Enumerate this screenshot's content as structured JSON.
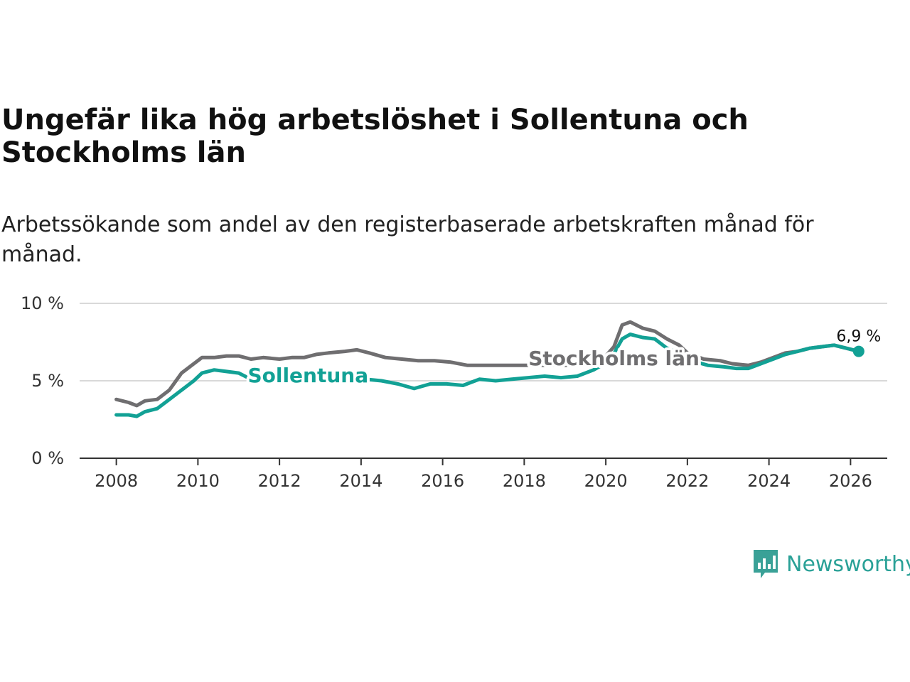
{
  "colors": {
    "sollentuna": "#12a195",
    "stockholm": "#6f6e70",
    "grid": "#d9d9d9",
    "axis": "#333333",
    "brand": "#3aa197"
  },
  "brand": {
    "name": "Newsworthy",
    "icon": "newsworthy-logo-icon"
  },
  "chart_data": {
    "type": "line",
    "title": "Ungefär lika hög arbetslöshet i Sollentuna och Stockholms län",
    "subtitle": "Arbetssökande som andel av den registerbaserade arbetskraften månad för månad.",
    "xlabel": "",
    "ylabel": "",
    "xlim": [
      2007.1,
      2026.9
    ],
    "ylim": [
      0,
      10
    ],
    "x_ticks": [
      2008,
      2010,
      2012,
      2014,
      2016,
      2018,
      2020,
      2022,
      2024,
      2026
    ],
    "x_tick_labels": [
      "2008",
      "2010",
      "2012",
      "2014",
      "2016",
      "2018",
      "2020",
      "2022",
      "2024",
      "2026"
    ],
    "y_ticks": [
      0,
      5,
      10
    ],
    "y_tick_labels": [
      "0 %",
      "5 %",
      "10 %"
    ],
    "grid": true,
    "series": [
      {
        "name": "Stockholms län",
        "key": "stockholm",
        "label_at": [
          2020.2,
          6.0
        ],
        "points": [
          [
            2008.0,
            3.8
          ],
          [
            2008.3,
            3.6
          ],
          [
            2008.5,
            3.4
          ],
          [
            2008.7,
            3.7
          ],
          [
            2009.0,
            3.8
          ],
          [
            2009.3,
            4.4
          ],
          [
            2009.6,
            5.5
          ],
          [
            2009.9,
            6.1
          ],
          [
            2010.1,
            6.5
          ],
          [
            2010.4,
            6.5
          ],
          [
            2010.7,
            6.6
          ],
          [
            2011.0,
            6.6
          ],
          [
            2011.3,
            6.4
          ],
          [
            2011.6,
            6.5
          ],
          [
            2012.0,
            6.4
          ],
          [
            2012.3,
            6.5
          ],
          [
            2012.6,
            6.5
          ],
          [
            2012.9,
            6.7
          ],
          [
            2013.2,
            6.8
          ],
          [
            2013.6,
            6.9
          ],
          [
            2013.9,
            7.0
          ],
          [
            2014.2,
            6.8
          ],
          [
            2014.6,
            6.5
          ],
          [
            2015.0,
            6.4
          ],
          [
            2015.4,
            6.3
          ],
          [
            2015.8,
            6.3
          ],
          [
            2016.2,
            6.2
          ],
          [
            2016.6,
            6.0
          ],
          [
            2017.0,
            6.0
          ],
          [
            2017.5,
            6.0
          ],
          [
            2018.0,
            6.0
          ],
          [
            2018.5,
            6.0
          ],
          [
            2019.0,
            6.0
          ],
          [
            2019.5,
            6.1
          ],
          [
            2019.9,
            6.3
          ],
          [
            2020.2,
            7.2
          ],
          [
            2020.4,
            8.6
          ],
          [
            2020.6,
            8.8
          ],
          [
            2020.9,
            8.4
          ],
          [
            2021.2,
            8.2
          ],
          [
            2021.5,
            7.7
          ],
          [
            2021.8,
            7.3
          ],
          [
            2022.0,
            6.8
          ],
          [
            2022.4,
            6.4
          ],
          [
            2022.8,
            6.3
          ],
          [
            2023.1,
            6.1
          ],
          [
            2023.5,
            6.0
          ],
          [
            2023.8,
            6.2
          ],
          [
            2024.1,
            6.5
          ],
          [
            2024.4,
            6.8
          ],
          [
            2024.7,
            6.9
          ],
          [
            2025.0,
            7.1
          ],
          [
            2025.3,
            7.2
          ],
          [
            2025.6,
            7.3
          ],
          [
            2025.9,
            7.1
          ],
          [
            2026.2,
            6.9
          ]
        ]
      },
      {
        "name": "Sollentuna",
        "key": "sollentuna",
        "label_at": [
          2012.7,
          4.9
        ],
        "end_label": "6,9 %",
        "points": [
          [
            2008.0,
            2.8
          ],
          [
            2008.3,
            2.8
          ],
          [
            2008.5,
            2.7
          ],
          [
            2008.7,
            3.0
          ],
          [
            2009.0,
            3.2
          ],
          [
            2009.3,
            3.8
          ],
          [
            2009.6,
            4.4
          ],
          [
            2009.9,
            5.0
          ],
          [
            2010.1,
            5.5
          ],
          [
            2010.4,
            5.7
          ],
          [
            2010.7,
            5.6
          ],
          [
            2011.0,
            5.5
          ],
          [
            2011.3,
            5.1
          ],
          [
            2011.6,
            5.3
          ],
          [
            2012.0,
            5.2
          ],
          [
            2012.3,
            5.2
          ],
          [
            2012.6,
            5.1
          ],
          [
            2012.9,
            5.6
          ],
          [
            2013.3,
            5.3
          ],
          [
            2013.7,
            5.2
          ],
          [
            2014.1,
            5.1
          ],
          [
            2014.5,
            5.0
          ],
          [
            2014.9,
            4.8
          ],
          [
            2015.3,
            4.5
          ],
          [
            2015.7,
            4.8
          ],
          [
            2016.1,
            4.8
          ],
          [
            2016.5,
            4.7
          ],
          [
            2016.9,
            5.1
          ],
          [
            2017.3,
            5.0
          ],
          [
            2017.7,
            5.1
          ],
          [
            2018.1,
            5.2
          ],
          [
            2018.5,
            5.3
          ],
          [
            2018.9,
            5.2
          ],
          [
            2019.3,
            5.3
          ],
          [
            2019.7,
            5.7
          ],
          [
            2020.1,
            6.3
          ],
          [
            2020.4,
            7.7
          ],
          [
            2020.6,
            8.0
          ],
          [
            2020.9,
            7.8
          ],
          [
            2021.2,
            7.7
          ],
          [
            2021.5,
            7.1
          ],
          [
            2021.8,
            6.8
          ],
          [
            2022.1,
            6.3
          ],
          [
            2022.5,
            6.0
          ],
          [
            2022.9,
            5.9
          ],
          [
            2023.2,
            5.8
          ],
          [
            2023.5,
            5.8
          ],
          [
            2023.8,
            6.1
          ],
          [
            2024.1,
            6.4
          ],
          [
            2024.4,
            6.7
          ],
          [
            2024.7,
            6.9
          ],
          [
            2025.0,
            7.1
          ],
          [
            2025.3,
            7.2
          ],
          [
            2025.6,
            7.3
          ],
          [
            2025.9,
            7.1
          ],
          [
            2026.2,
            6.9
          ]
        ]
      }
    ]
  }
}
